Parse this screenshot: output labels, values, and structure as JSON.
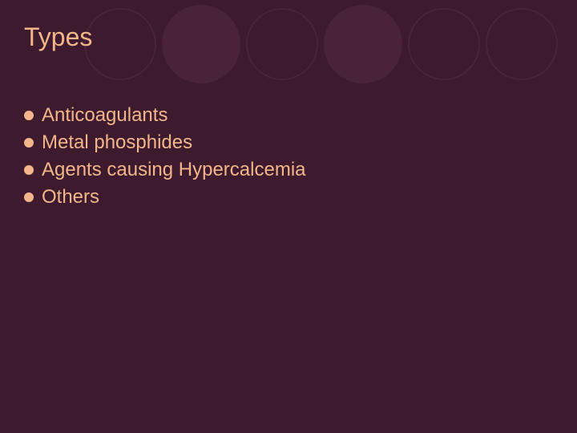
{
  "slide": {
    "background_color": "#3d1a2e",
    "title": {
      "text": "Types",
      "color": "#f2b68a",
      "fontsize": 32
    },
    "circles": [
      {
        "diameter": 90,
        "fill": "none",
        "border_color": "#4a2339",
        "border_width": 2
      },
      {
        "diameter": 98,
        "fill": "#4a2339",
        "border_color": "none",
        "border_width": 0
      },
      {
        "diameter": 90,
        "fill": "none",
        "border_color": "#4a2339",
        "border_width": 2
      },
      {
        "diameter": 98,
        "fill": "#4a2339",
        "border_color": "none",
        "border_width": 0
      },
      {
        "diameter": 90,
        "fill": "none",
        "border_color": "#4a2339",
        "border_width": 2
      },
      {
        "diameter": 90,
        "fill": "none",
        "border_color": "#4a2339",
        "border_width": 2
      }
    ],
    "bullets": {
      "color": "#f2b68a",
      "bullet_color": "#f2b68a",
      "fontsize": 24,
      "items": [
        "Anticoagulants",
        "Metal phosphides",
        "Agents causing Hypercalcemia",
        "Others"
      ]
    }
  }
}
